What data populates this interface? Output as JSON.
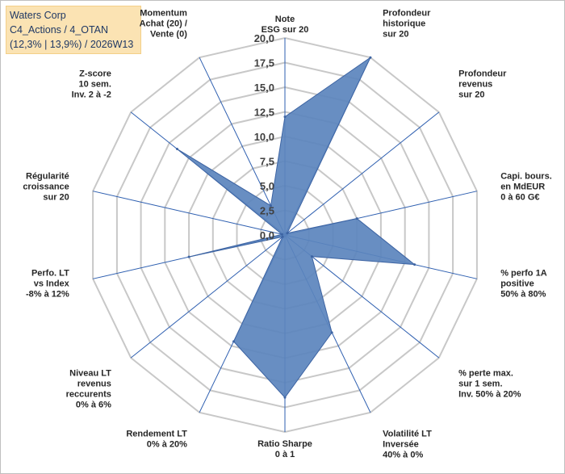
{
  "header": {
    "line1": "Waters Corp",
    "line2": "C4_Actions / 4_OTAN",
    "line3": "(12,3% | 13,9%) / 2026W13"
  },
  "colors": {
    "grid": "#c8c8c8",
    "spoke": "#2e5fb0",
    "fill": "#5b84bd",
    "stroke": "#3d64a3",
    "title_bg": "#fbe3b3",
    "title_text": "#1f3864"
  },
  "chart_data": {
    "type": "radar",
    "rmax": 20,
    "ticks": [
      "0,0",
      "2,5",
      "5,0",
      "7,5",
      "10,0",
      "12,5",
      "15,0",
      "17,5",
      "20,0"
    ],
    "axes": [
      [
        "Note",
        "ESG sur 20"
      ],
      [
        "Profondeur",
        "historique",
        "sur 20"
      ],
      [
        "Profondeur",
        "revenus",
        "sur 20"
      ],
      [
        "Capi. bours.",
        "en MdEUR",
        "0 à 60 G€"
      ],
      [
        "% perfo 1A",
        "positive",
        "50% à 80%"
      ],
      [
        "% perte max.",
        "sur 1 sem.",
        "Inv. 50% à 20%"
      ],
      [
        "Volatilité LT",
        "Inversée",
        "40% à 0%"
      ],
      [
        "Ratio Sharpe",
        "0 à 1"
      ],
      [
        "Rendement LT",
        "0% à 20%"
      ],
      [
        "Niveau LT",
        "revenus",
        "reccurents",
        "0% à 6%"
      ],
      [
        "Perfo. LT",
        "vs Index",
        "-8% à 12%"
      ],
      [
        "Régularité",
        "croissance",
        "sur 20"
      ],
      [
        "Z-score",
        "10 sem.",
        "Inv. 2 à -2"
      ],
      [
        "Momentum",
        "Achat (20) /",
        "Vente (0)"
      ]
    ],
    "values": [
      12,
      20,
      0.3,
      7.5,
      13.5,
      3.5,
      11,
      16.5,
      12,
      0.3,
      10,
      0.3,
      14,
      3.3
    ]
  }
}
